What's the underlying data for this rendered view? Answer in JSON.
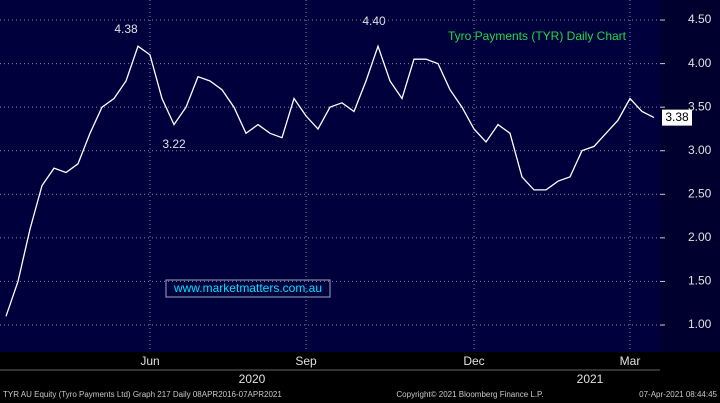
{
  "chart_data": {
    "type": "line",
    "title": "Tyro Payments (TYR) Daily Chart",
    "categories": [
      null,
      null,
      null,
      null,
      null,
      null,
      null,
      null,
      null,
      null,
      null,
      null,
      "Jun",
      null,
      null,
      null,
      null,
      null,
      null,
      null,
      null,
      null,
      null,
      null,
      null,
      "Sep",
      null,
      null,
      null,
      null,
      null,
      null,
      null,
      null,
      null,
      null,
      null,
      null,
      null,
      "Dec",
      null,
      null,
      null,
      null,
      null,
      null,
      null,
      null,
      null,
      null,
      null,
      null,
      "Mar",
      null,
      null
    ],
    "series": [
      {
        "name": "TYR AU Equity (Tyro Payments Ltd)",
        "color": "#ffffff",
        "values": [
          1.1,
          1.5,
          2.1,
          2.6,
          2.8,
          2.75,
          2.85,
          3.2,
          3.5,
          3.6,
          3.8,
          4.2,
          4.1,
          3.6,
          3.3,
          3.5,
          3.85,
          3.8,
          3.7,
          3.5,
          3.2,
          3.3,
          3.2,
          3.15,
          3.6,
          3.4,
          3.25,
          3.5,
          3.55,
          3.45,
          3.8,
          4.2,
          3.8,
          3.6,
          4.05,
          4.05,
          4.0,
          3.7,
          3.5,
          3.25,
          3.1,
          3.3,
          3.2,
          2.7,
          2.55,
          2.55,
          2.65,
          2.7,
          3.0,
          3.05,
          3.2,
          3.35,
          3.6,
          3.45,
          3.38
        ]
      }
    ],
    "ylim": [
      0.69,
      4.73
    ],
    "yticks": [
      {
        "value": 1,
        "label": "1.00"
      },
      {
        "value": 1.5,
        "label": "1.50"
      },
      {
        "value": 2,
        "label": "2.00"
      },
      {
        "value": 2.5,
        "label": "2.50"
      },
      {
        "value": 3,
        "label": "3.00"
      },
      {
        "value": 3.5,
        "label": "3.50"
      },
      {
        "value": 4,
        "label": "4.00"
      },
      {
        "value": 4.5,
        "label": "4.50"
      }
    ],
    "grid": true,
    "annotations": [
      "4.38",
      "4.40",
      "3.22"
    ],
    "last_price": {
      "value": 3.38,
      "label": "3.38"
    },
    "years": [
      "2020",
      "2021"
    ],
    "watermark": "www.marketmatters.com.au",
    "footer": {
      "left": "TYR AU Equity (Tyro Payments Ltd) Graph 217  Daily 08APR2016-07APR2021",
      "center": "Copyright© 2021 Bloomberg Finance L.P.",
      "right": "07-Apr-2021 08:44:45"
    }
  }
}
